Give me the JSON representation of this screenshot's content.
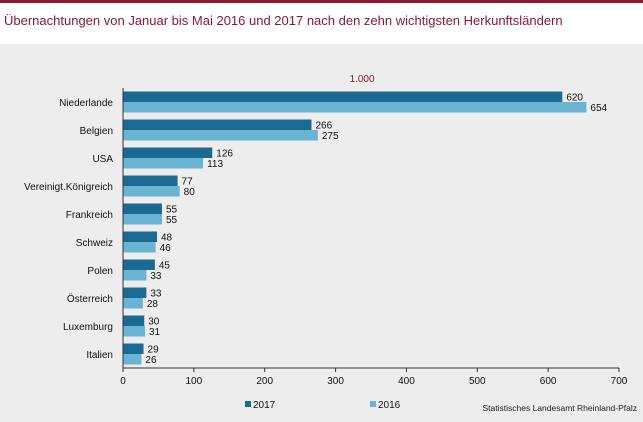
{
  "title": "Übernachtungen von Januar bis Mai 2016 und 2017 nach den zehn wichtigsten Herkunftsländern",
  "source": "Statistisches Landesamt Rheinland-Pfalz",
  "chart_data": {
    "type": "bar",
    "orientation": "horizontal",
    "unit_label": "1.000",
    "categories": [
      "Niederlande",
      "Belgien",
      "USA",
      "Vereinigt.Königreich",
      "Frankreich",
      "Schweiz",
      "Polen",
      "Österreich",
      "Luxemburg",
      "Italien"
    ],
    "series": [
      {
        "name": "2017",
        "color": "#1a6a94",
        "values": [
          620,
          266,
          126,
          77,
          55,
          48,
          45,
          33,
          30,
          29
        ]
      },
      {
        "name": "2016",
        "color": "#6bb3d2",
        "values": [
          654,
          275,
          113,
          80,
          55,
          46,
          33,
          28,
          31,
          26
        ]
      }
    ],
    "xlim": [
      0,
      700
    ],
    "xticks": [
      0,
      100,
      200,
      300,
      400,
      500,
      600,
      700
    ],
    "legend": "bottom-left"
  },
  "colors": {
    "title": "#8a1a2e",
    "unit": "#8a1a2e",
    "panel": "#ededed"
  }
}
